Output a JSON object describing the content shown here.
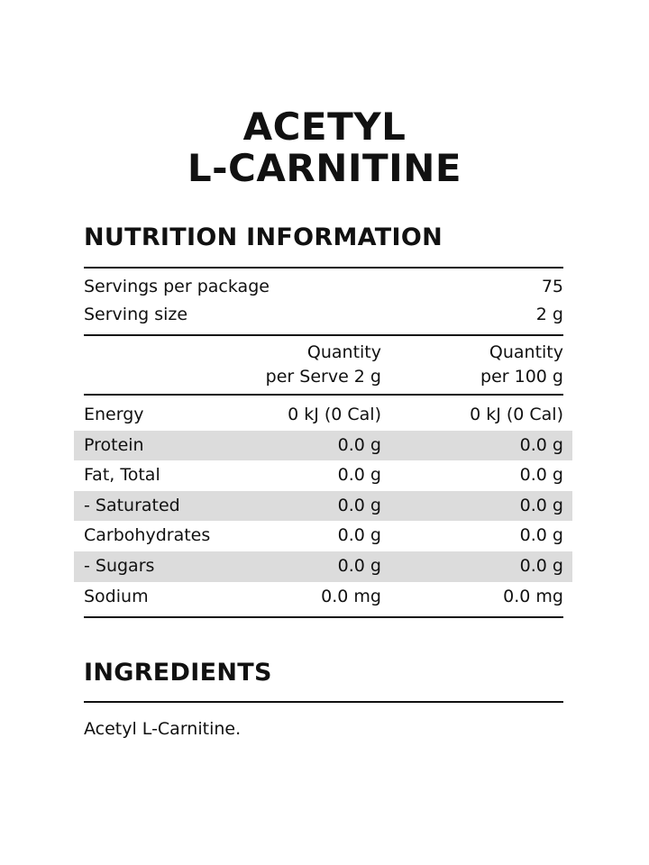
{
  "title": [
    "ACETYL",
    "L-CARNITINE"
  ],
  "nutrition": {
    "heading": "NUTRITION INFORMATION",
    "servings_label": "Servings per package",
    "servings_value": "75",
    "serving_size_label": "Serving size",
    "serving_size_value": "2 g",
    "col1": [
      "Quantity",
      "per Serve 2 g"
    ],
    "col2": [
      "Quantity",
      "per 100 g"
    ],
    "rows": [
      {
        "label": "Energy",
        "per_serve": "0 kJ (0 Cal)",
        "per_100g": "0 kJ (0 Cal)"
      },
      {
        "label": "Protein",
        "per_serve": "0.0 g",
        "per_100g": "0.0 g"
      },
      {
        "label": "Fat, Total",
        "per_serve": "0.0 g",
        "per_100g": "0.0 g"
      },
      {
        "label": "- Saturated",
        "per_serve": "0.0 g",
        "per_100g": "0.0 g"
      },
      {
        "label": "Carbohydrates",
        "per_serve": "0.0 g",
        "per_100g": "0.0 g"
      },
      {
        "label": "- Sugars",
        "per_serve": "0.0 g",
        "per_100g": "0.0 g"
      },
      {
        "label": "Sodium",
        "per_serve": "0.0 mg",
        "per_100g": "0.0 mg"
      }
    ]
  },
  "ingredients": {
    "heading": "INGREDIENTS",
    "text": "Acetyl L-Carnitine."
  },
  "colors": {
    "stripe": "#dcdcdc",
    "text": "#111111"
  }
}
